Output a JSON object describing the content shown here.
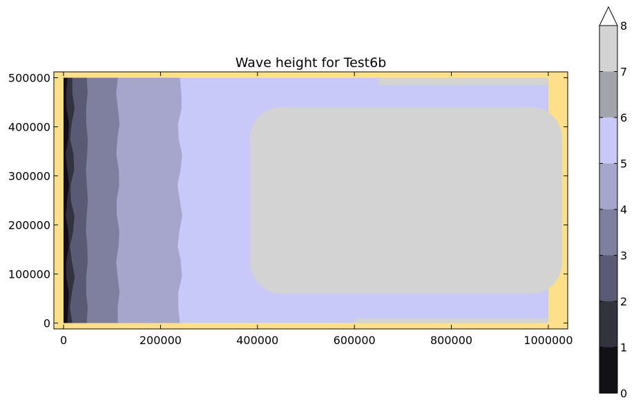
{
  "chart_data": {
    "type": "heatmap",
    "title": "Wave height for Test6b",
    "xlim": [
      -20000,
      1040000
    ],
    "ylim": [
      -12000,
      512000
    ],
    "x_ticks": [
      0,
      200000,
      400000,
      600000,
      800000,
      1000000
    ],
    "x_tick_labels": [
      "0",
      "200000",
      "400000",
      "600000",
      "800000",
      "1000000"
    ],
    "y_ticks": [
      0,
      100000,
      200000,
      300000,
      400000,
      500000
    ],
    "y_tick_labels": [
      "0",
      "100000",
      "200000",
      "300000",
      "400000",
      "500000"
    ],
    "domain_extent": {
      "x": [
        0,
        1000000
      ],
      "y": [
        0,
        500000
      ]
    },
    "background_color": "#ffe08a",
    "grid": false,
    "colorbar": {
      "levels": [
        0,
        1,
        2,
        3,
        4,
        5,
        6,
        7,
        8
      ],
      "tick_labels": [
        "0",
        "1",
        "2",
        "3",
        "4",
        "5",
        "6",
        "7",
        "8"
      ],
      "colors": [
        "#111116",
        "#33323f",
        "#5a5a75",
        "#7f7f9f",
        "#a6a6cc",
        "#c9c9f9",
        "#a3a3ab",
        "#d3d3d3",
        "#ffffff"
      ],
      "extend": "max"
    },
    "bands": [
      {
        "level": "0-1",
        "x_start": 0,
        "x_end": 1000000,
        "y_range": [
          0,
          500000
        ],
        "color": "#111116"
      },
      {
        "level": "1-2",
        "x_start": 8000,
        "x_end": 1000000,
        "y_range": [
          0,
          500000
        ],
        "color": "#33323f"
      },
      {
        "level": "2-3",
        "x_start": 18000,
        "x_end": 1000000,
        "y_range": [
          0,
          500000
        ],
        "color": "#5a5a75"
      },
      {
        "level": "3-4",
        "x_start": 48000,
        "x_end": 1000000,
        "y_range": [
          0,
          500000
        ],
        "color": "#7f7f9f"
      },
      {
        "level": "4-5",
        "x_start": 112000,
        "x_end": 1000000,
        "y_range": [
          0,
          500000
        ],
        "color": "#a6a6cc"
      },
      {
        "level": "5-6",
        "x_start": 240000,
        "x_end": 1000000,
        "y_range": [
          0,
          500000
        ],
        "color": "#c9c9f9"
      },
      {
        "level": "6-7 (core)",
        "x_start": 385000,
        "x_end": 1000000,
        "y_range": [
          60000,
          440000
        ],
        "color": "#d3d3d3"
      },
      {
        "level": "6-7 (edge top)",
        "x_start": 650000,
        "x_end": 1000000,
        "y_range": [
          485000,
          500000
        ],
        "color": "#d3d3d3"
      },
      {
        "level": "6-7 (edge bottom)",
        "x_start": 600000,
        "x_end": 1000000,
        "y_range": [
          0,
          10000
        ],
        "color": "#d3d3d3"
      }
    ]
  }
}
